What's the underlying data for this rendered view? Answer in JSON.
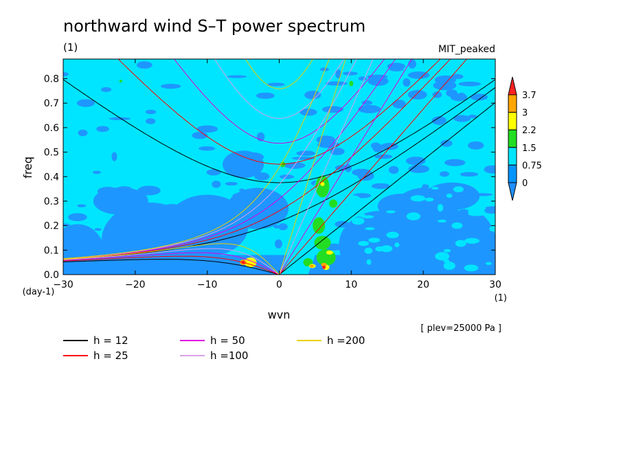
{
  "chart_data": {
    "type": "heatmap",
    "title": "northward wind S–T power spectrum",
    "subtitle_left": "(1)",
    "subtitle_right": "MIT_peaked",
    "xlabel": "wvn",
    "ylabel": "freq",
    "x_unit_label": "(1)",
    "y_unit_label": "(day-1)",
    "xlim": [
      -30,
      30
    ],
    "ylim": [
      0,
      0.88
    ],
    "x_ticks": [
      -30,
      -20,
      -10,
      0,
      10,
      20,
      30
    ],
    "x_tick_labels": [
      "−30",
      "−20",
      "−10",
      "0",
      "10",
      "20",
      "30"
    ],
    "y_ticks": [
      0,
      0.1,
      0.2,
      0.3,
      0.4,
      0.5,
      0.6,
      0.7,
      0.8
    ],
    "y_tick_labels": [
      "0.0",
      "0.1",
      "0.2",
      "0.3",
      "0.4",
      "0.5",
      "0.6",
      "0.7",
      "0.8"
    ],
    "colorbar": {
      "levels": [
        0,
        0.75,
        1.5,
        2.2,
        3,
        3.7
      ],
      "labels": [
        "0",
        "0.75",
        "1.5",
        "2.2",
        "3",
        "3.7"
      ],
      "colors": [
        "#1e90ff",
        "#0095ff",
        "#00e5ff",
        "#22dd22",
        "#ffff00",
        "#ffa500",
        "#ff2222"
      ]
    },
    "field_colors": {
      "low": "#1e96ff",
      "mid": "#00e5ff",
      "green": "#22dd22",
      "yellow": "#ffff00",
      "orange": "#ffa500",
      "red": "#ff2222"
    },
    "dispersion_curves": [
      {
        "name": "h = 12",
        "h": 12,
        "color": "#000000"
      },
      {
        "name": "h = 25",
        "h": 25,
        "color": "#ff0000"
      },
      {
        "name": "h = 50",
        "h": 50,
        "color": "#e000e0"
      },
      {
        "name": "h =100",
        "h": 100,
        "color": "#d8a0e8"
      },
      {
        "name": "h =200",
        "h": 200,
        "color": "#e8d000"
      }
    ],
    "footnote": "[ plev=25000 Pa ]"
  }
}
